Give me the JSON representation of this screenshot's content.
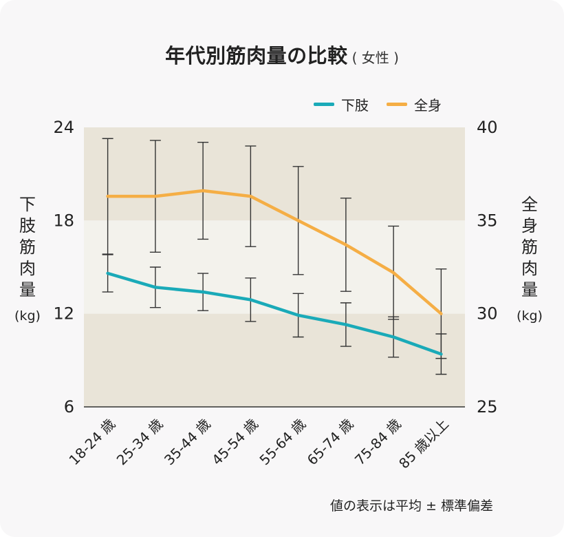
{
  "title": "年代別筋肉量の比較",
  "subtitle": "( 女性 )",
  "footnote": "値の表示は平均 ± 標準偏差",
  "left_axis_label": "下肢筋肉量",
  "left_axis_unit": "(kg)",
  "right_axis_label": "全身筋肉量",
  "right_axis_unit": "(kg)",
  "colors": {
    "lower_limb": "#1aaab8",
    "whole_body": "#f5ae45",
    "band_dark": "#e9e4d8",
    "band_light": "#f3f2ec",
    "error_bar": "#333333"
  },
  "chart_data": {
    "type": "line",
    "categories": [
      "18-24 歳",
      "25-34 歳",
      "35-44 歳",
      "45-54 歳",
      "55-64 歳",
      "65-74 歳",
      "75-84 歳",
      "85 歳以上"
    ],
    "left_axis": {
      "ticks": [
        6,
        12,
        18,
        24
      ],
      "ylim": [
        6,
        24
      ]
    },
    "right_axis": {
      "ticks": [
        25,
        30,
        35,
        40
      ],
      "ylim": [
        25,
        40
      ]
    },
    "bands": [
      {
        "from": 18,
        "to": 24,
        "tone": "dark"
      },
      {
        "from": 12,
        "to": 18,
        "tone": "light"
      },
      {
        "from": 6,
        "to": 12,
        "tone": "dark"
      }
    ],
    "series": [
      {
        "name": "下肢",
        "axis": "left",
        "color": "#1aaab8",
        "values": [
          14.6,
          13.7,
          13.4,
          12.9,
          11.9,
          11.3,
          10.5,
          9.4
        ],
        "sd": [
          1.2,
          1.3,
          1.2,
          1.4,
          1.4,
          1.4,
          1.3,
          1.3
        ]
      },
      {
        "name": "全身",
        "axis": "right",
        "color": "#f5ae45",
        "values": [
          36.3,
          36.3,
          36.6,
          36.3,
          35.0,
          33.7,
          32.2,
          30.0
        ],
        "sd": [
          3.1,
          3.0,
          2.6,
          2.7,
          2.9,
          2.5,
          2.5,
          2.4
        ]
      }
    ]
  }
}
